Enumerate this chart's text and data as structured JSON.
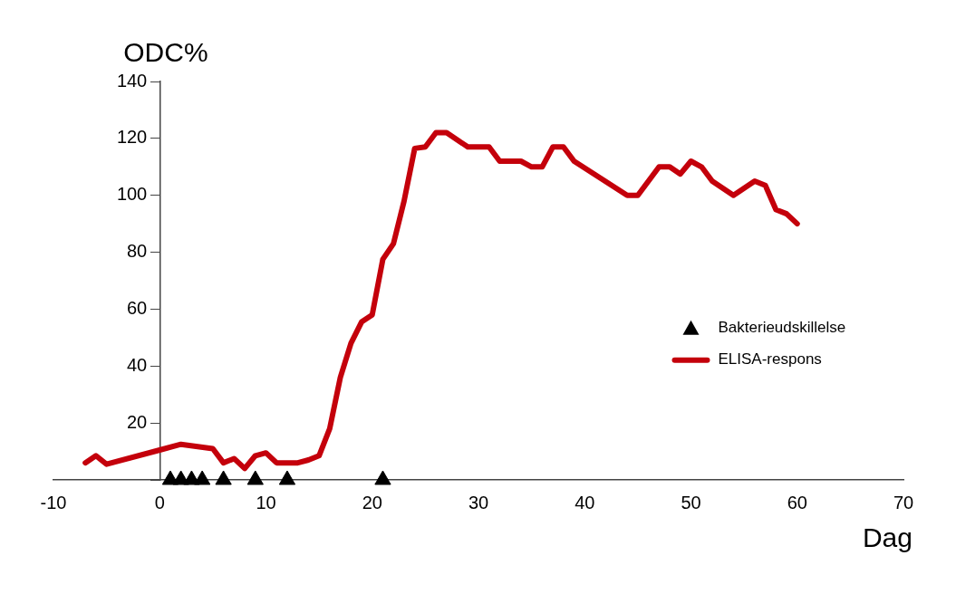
{
  "chart_data": {
    "type": "line",
    "xlabel": "Dag",
    "ylabel": "ODC%",
    "xlim": [
      -10,
      70
    ],
    "xticks": [
      -10,
      0,
      10,
      20,
      30,
      40,
      50,
      60,
      70
    ],
    "ylim": [
      0,
      140
    ],
    "yticks": [
      {
        "value": 0,
        "label": null
      },
      20,
      40,
      60,
      80,
      100,
      120,
      140
    ],
    "grid": false,
    "legend": "right",
    "series": [
      {
        "name": "Bakterieudskillelse",
        "type": "scatter",
        "marker": "triangle",
        "color": "#000000",
        "x": [
          1,
          2,
          3,
          4,
          6,
          9,
          12,
          21
        ],
        "values": [
          0,
          0,
          0,
          0,
          0,
          0,
          0,
          0
        ]
      },
      {
        "name": "ELISA-respons",
        "marker": "none",
        "line_style": "solid",
        "color": "#c4000b",
        "x": [
          -7,
          -6,
          -5,
          0,
          2,
          5,
          6,
          7,
          8,
          9,
          10,
          11,
          13,
          14,
          15,
          16,
          17,
          18,
          19,
          20,
          21,
          22,
          23,
          24,
          25,
          26,
          27,
          29,
          31,
          32,
          34,
          35,
          36,
          37,
          38,
          39,
          44,
          45,
          47,
          48,
          49,
          50,
          51,
          52,
          54,
          56,
          57,
          58,
          59,
          60
        ],
        "values": [
          6,
          8.5,
          5.5,
          10.5,
          12.5,
          11,
          6,
          7.5,
          4,
          8.5,
          9.5,
          6,
          6,
          7,
          8.5,
          18,
          36,
          48,
          55.5,
          58,
          77.5,
          83,
          98,
          116.5,
          117,
          122,
          122,
          117,
          117,
          112,
          112,
          110,
          110,
          117,
          117,
          112,
          100,
          100,
          110,
          110,
          107.5,
          112,
          110,
          105,
          100,
          105,
          103.5,
          95,
          93.5,
          90
        ]
      }
    ]
  }
}
